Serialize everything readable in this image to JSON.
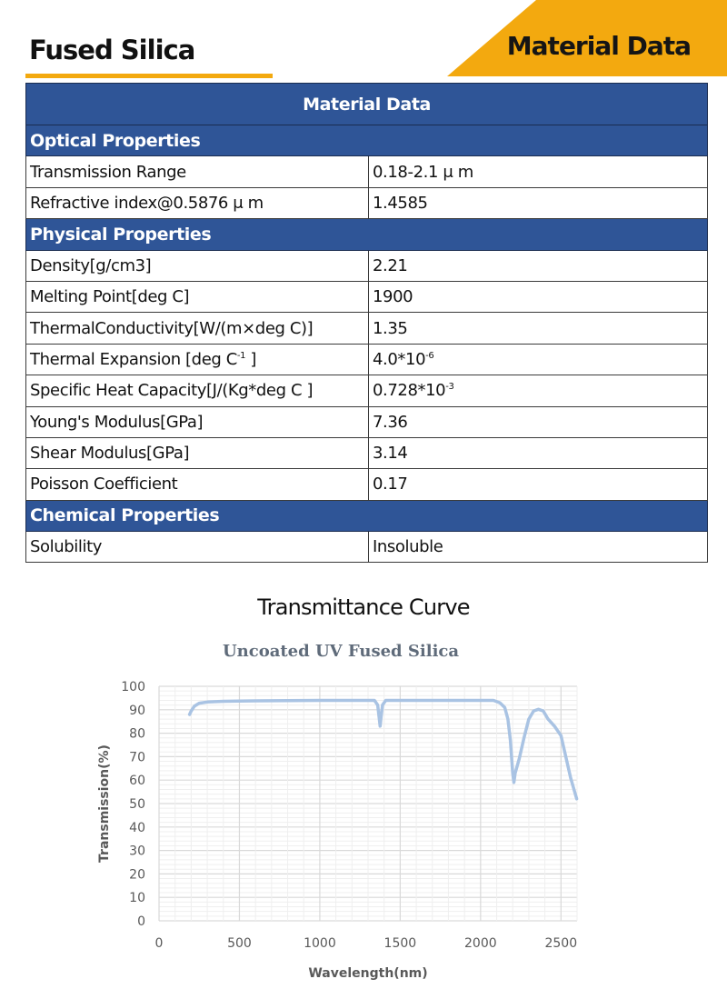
{
  "header": {
    "title": "Fused Silica",
    "banner": "Material Data",
    "accent_color": "#f3a90f",
    "table_header_color": "#2f5597"
  },
  "table": {
    "title": "Material Data",
    "sections": [
      {
        "name": "Optical Properties",
        "rows": [
          {
            "property": "Transmission Range",
            "value": "0.18-2.1 μ m"
          },
          {
            "property": "Refractive index@0.5876 μ m",
            "value": "1.4585"
          }
        ]
      },
      {
        "name": "Physical Properties",
        "rows": [
          {
            "property": "Density[g/cm3]",
            "value": "2.21"
          },
          {
            "property": "Melting Point[deg C]",
            "value": "1900"
          },
          {
            "property": "ThermalConductivity[W/(m×deg C)]",
            "value": "1.35"
          },
          {
            "property": "Thermal Expansion [deg C",
            "property_sup": "-1",
            "property_suffix": " ]",
            "value": "4.0*10",
            "value_sup": "-6"
          },
          {
            "property": "Specific Heat Capacity[J/(Kg*deg C ]",
            "value": "0.728*10",
            "value_sup": "-3"
          },
          {
            "property": "Young's Modulus[GPa]",
            "value": "7.36"
          },
          {
            "property": "Shear Modulus[GPa]",
            "value": "3.14"
          },
          {
            "property": "Poisson Coefficient",
            "value": "0.17"
          }
        ]
      },
      {
        "name": "Chemical Properties",
        "rows": [
          {
            "property": "Solubility",
            "value": "Insoluble"
          }
        ]
      }
    ]
  },
  "curve_section": {
    "title": "Transmittance Curve"
  },
  "chart_data": {
    "type": "line",
    "title": "Uncoated UV Fused Silica",
    "xlabel": "Wavelength(nm)",
    "ylabel": "Transmission(%)",
    "xlim": [
      0,
      2600
    ],
    "ylim": [
      0,
      100
    ],
    "xticks": [
      0,
      500,
      1000,
      1500,
      2000,
      2500
    ],
    "yticks": [
      0,
      10,
      20,
      30,
      40,
      50,
      60,
      70,
      80,
      90,
      100
    ],
    "grid": {
      "major_x": 500,
      "minor_x": 100,
      "major_y": 10,
      "minor_y": 2
    },
    "legend": "none",
    "line_color": "#a9c3e3",
    "series": [
      {
        "name": "Uncoated UV Fused Silica",
        "x": [
          190,
          200,
          220,
          250,
          300,
          400,
          600,
          1000,
          1340,
          1360,
          1370,
          1375,
          1380,
          1390,
          1410,
          1600,
          2000,
          2080,
          2120,
          2150,
          2170,
          2185,
          2200,
          2207,
          2215,
          2240,
          2270,
          2300,
          2330,
          2360,
          2390,
          2420,
          2460,
          2500,
          2530,
          2560,
          2598
        ],
        "y": [
          88,
          89.5,
          91.5,
          92.8,
          93.3,
          93.6,
          93.8,
          94,
          94,
          92,
          86,
          83,
          86,
          92,
          94,
          94,
          94,
          94,
          93,
          91,
          86,
          77,
          63,
          59,
          63,
          69,
          78,
          86,
          89.5,
          90.2,
          89.5,
          86,
          83,
          79,
          70,
          61,
          52
        ]
      }
    ]
  }
}
